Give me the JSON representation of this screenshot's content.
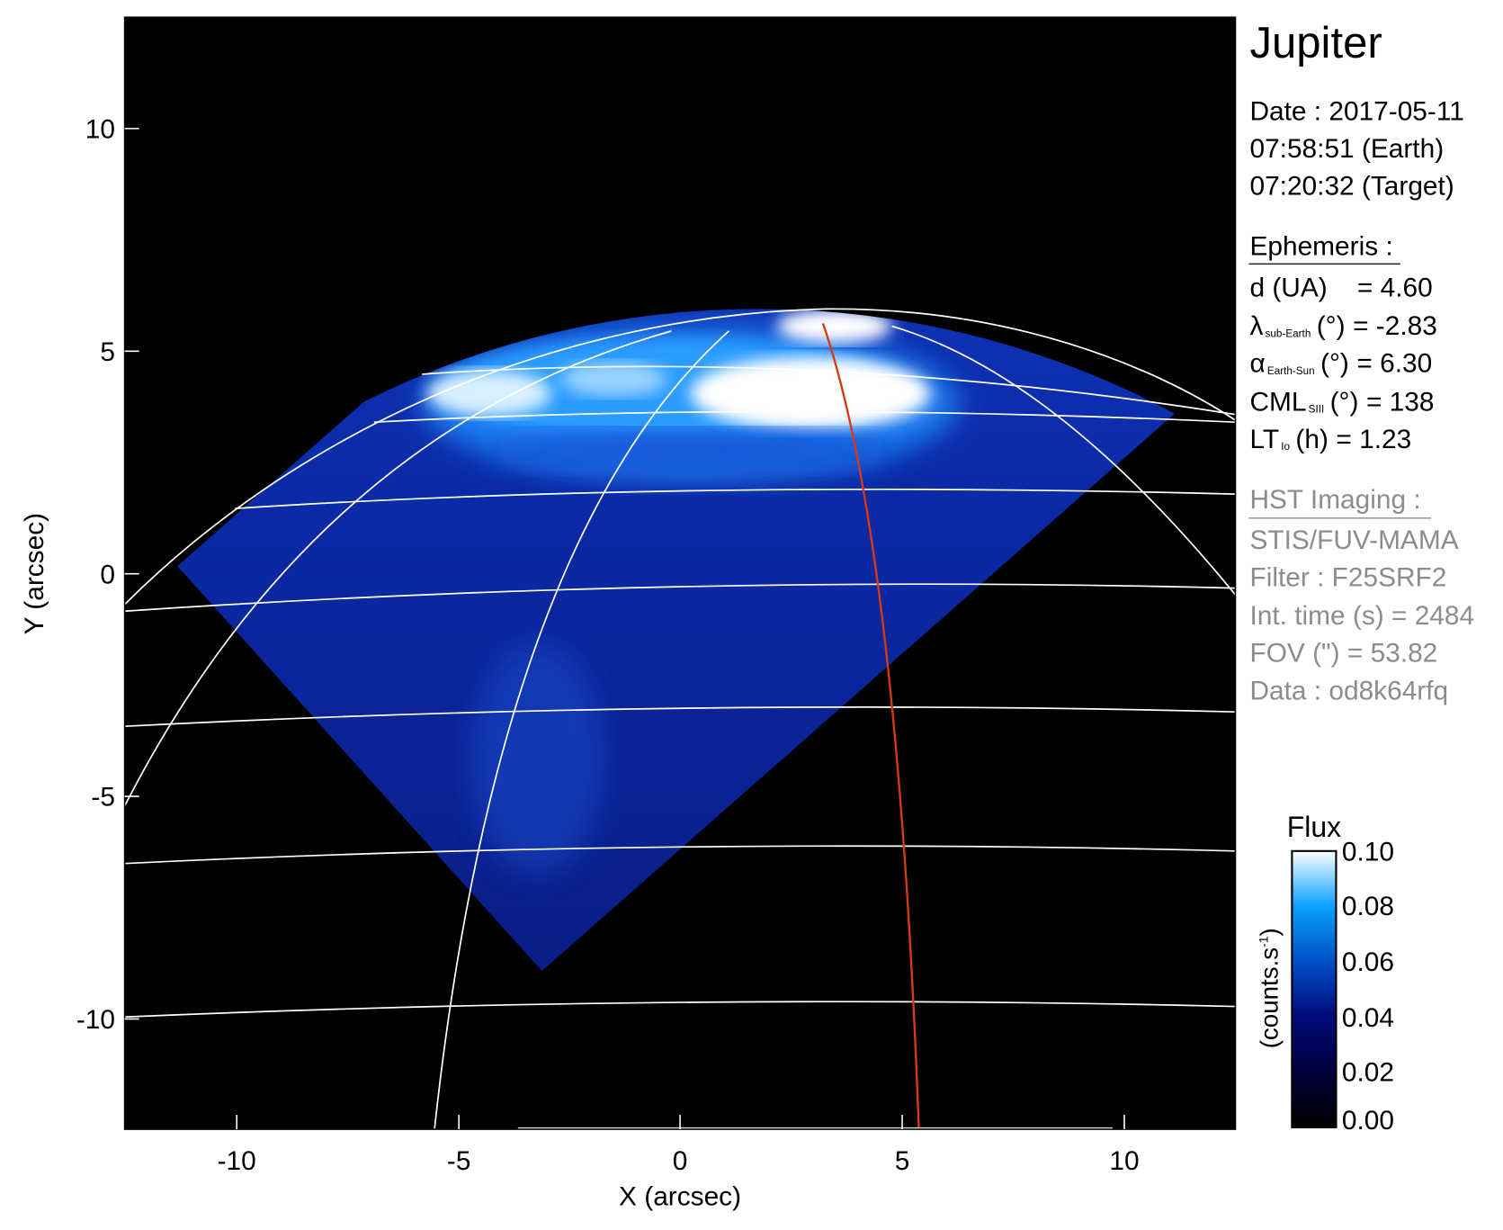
{
  "chart_data": {
    "type": "heatmap",
    "title": "",
    "xlabel": "X (arcsec)",
    "ylabel": "Y (arcsec)",
    "xlim": [
      -12.5,
      12.5
    ],
    "ylim": [
      -12.5,
      12.5
    ],
    "x_ticks": [
      "-10",
      "-5",
      "0",
      "5",
      "10"
    ],
    "y_ticks": [
      "10",
      "5",
      "0",
      "-5",
      "-10"
    ],
    "x_tick_values": [
      -10,
      -5,
      0,
      5,
      10
    ],
    "y_tick_values": [
      10,
      5,
      0,
      -5,
      -10
    ],
    "colorbar": {
      "title": "Flux",
      "label": "(counts.s",
      "label_sup": "-1",
      "label_end": ")",
      "range": [
        0.0,
        0.1
      ],
      "ticks": [
        "0.10",
        "0.08",
        "0.06",
        "0.04",
        "0.02",
        "0.00"
      ],
      "tick_values": [
        0.1,
        0.08,
        0.06,
        0.04,
        0.02,
        0.0
      ],
      "colors": [
        "#000000",
        "#00003a",
        "#000a7a",
        "#0050c8",
        "#0aa0ff",
        "#ffffff"
      ]
    },
    "background_color": "#000000",
    "grid_color": "#ffffff",
    "highlight_line_color": "#d83a10"
  },
  "panel": {
    "target": "Jupiter",
    "date_line": "Date : 2017-05-11",
    "earth_time": "07:58:51 (Earth)",
    "target_time": "07:20:32 (Target)",
    "ephemeris": {
      "heading": "Ephemeris :",
      "d": {
        "label": "d (UA)",
        "value": "= 4.60"
      },
      "lat": {
        "symbol": "λ",
        "sub": "sub-Earth",
        "unit": "(°)",
        "value": "= -2.83"
      },
      "phase": {
        "symbol": "α",
        "sub": "Earth-Sun",
        "unit": "(°)",
        "value": "= 6.30"
      },
      "cml": {
        "symbol": "CML",
        "sub": "SIII",
        "unit": "(°)",
        "value": "= 138"
      },
      "lt": {
        "symbol": "LT",
        "sub": "Io",
        "unit": "(h)",
        "value": "= 1.23"
      }
    },
    "hst": {
      "heading": "HST Imaging :",
      "instrument": "STIS/FUV-MAMA",
      "filter": "Filter : F25SRF2",
      "int_time": "Int. time (s) = 2484",
      "fov": "FOV (\") = 53.82",
      "data": "Data : od8k64rfq"
    }
  }
}
